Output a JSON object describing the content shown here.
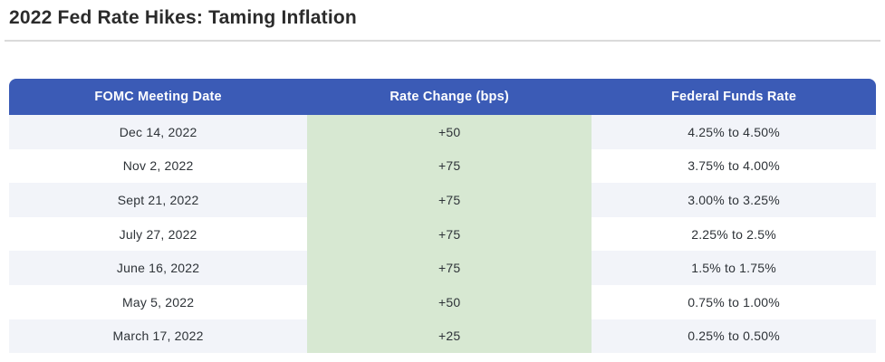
{
  "title": "2022 Fed Rate Hikes: Taming Inflation",
  "colors": {
    "header_bg": "#3B5BB6",
    "header_text": "#FFFFFF",
    "stripe_bg": "#F2F4F9",
    "row_bg": "#FFFFFF",
    "highlight_col_bg": "#D7E8D2",
    "body_text": "#2E3338",
    "title_text": "#2B2B2B",
    "divider": "#DADADA"
  },
  "table": {
    "columns": [
      "FOMC Meeting Date",
      "Rate Change (bps)",
      "Federal Funds Rate"
    ],
    "rows": [
      {
        "date": "Dec 14, 2022",
        "change": "+50",
        "rate": "4.25% to 4.50%"
      },
      {
        "date": "Nov 2, 2022",
        "change": "+75",
        "rate": "3.75% to 4.00%"
      },
      {
        "date": "Sept 21, 2022",
        "change": "+75",
        "rate": "3.00% to 3.25%"
      },
      {
        "date": "July 27, 2022",
        "change": "+75",
        "rate": "2.25% to 2.5%"
      },
      {
        "date": "June 16, 2022",
        "change": "+75",
        "rate": "1.5% to 1.75%"
      },
      {
        "date": "May 5, 2022",
        "change": "+50",
        "rate": "0.75% to 1.00%"
      },
      {
        "date": "March 17, 2022",
        "change": "+25",
        "rate": "0.25% to 0.50%"
      }
    ]
  },
  "chart_data": {
    "type": "table",
    "title": "2022 Fed Rate Hikes: Taming Inflation",
    "columns": [
      "FOMC Meeting Date",
      "Rate Change (bps)",
      "Federal Funds Rate"
    ],
    "rows": [
      [
        "Dec 14, 2022",
        "+50",
        "4.25% to 4.50%"
      ],
      [
        "Nov 2, 2022",
        "+75",
        "3.75% to 4.00%"
      ],
      [
        "Sept 21, 2022",
        "+75",
        "3.00% to 3.25%"
      ],
      [
        "July 27, 2022",
        "+75",
        "2.25% to 2.5%"
      ],
      [
        "June 16, 2022",
        "+75",
        "1.5% to 1.75%"
      ],
      [
        "May 5, 2022",
        "+50",
        "0.75% to 1.00%"
      ],
      [
        "March 17, 2022",
        "+25",
        "0.25% to 0.50%"
      ]
    ],
    "rate_change_bps": [
      50,
      75,
      75,
      75,
      75,
      50,
      25
    ],
    "highlighted_column": "Rate Change (bps)"
  }
}
